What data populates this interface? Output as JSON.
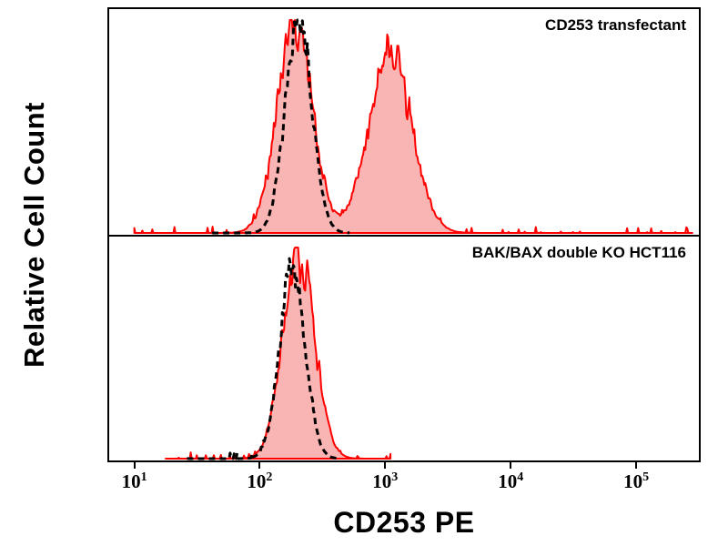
{
  "chart_data": {
    "type": "area",
    "subtype": "flow-cytometry-histogram-overlay",
    "title": "",
    "xlabel": "CD253 PE",
    "ylabel": "Relative Cell Count",
    "x_scale": "log10",
    "x_range_log10": [
      0.8,
      5.5
    ],
    "x_tick_exponents": [
      1,
      2,
      3,
      4,
      5
    ],
    "grid": false,
    "legend_position": "none",
    "colors": {
      "stained_line": "#ff0000",
      "stained_fill": "#f9b4b4",
      "control_line": "#000000",
      "axis": "#000000",
      "background": "#ffffff"
    },
    "panels": [
      {
        "label": "CD253 transfectant",
        "series": [
          {
            "name": "CD253-PE stained (red filled)",
            "style": "solid-filled",
            "color": "#ff0000",
            "fill": "#f9b4b4",
            "peaks": [
              {
                "center_log10": 2.28,
                "sigma_log10": 0.14,
                "height": 0.97
              },
              {
                "center_log10": 3.04,
                "sigma_log10": 0.17,
                "height": 0.84
              }
            ],
            "domain_log10": [
              1.0,
              5.45
            ],
            "noise": 0.16,
            "baseline_spikes": true,
            "seed": 7
          },
          {
            "name": "unstained / isotype control (black dashed)",
            "style": "dashed",
            "color": "#000000",
            "peaks": [
              {
                "center_log10": 2.31,
                "sigma_log10": 0.105,
                "height": 1.0
              }
            ],
            "domain_log10": [
              1.62,
              2.72
            ],
            "noise": 0.12,
            "baseline_spikes": false,
            "seed": 3
          }
        ]
      },
      {
        "label": "BAK/BAX double KO HCT116",
        "series": [
          {
            "name": "CD253-PE stained (red filled)",
            "style": "solid-filled",
            "color": "#ff0000",
            "fill": "#f9b4b4",
            "peaks": [
              {
                "center_log10": 2.31,
                "sigma_log10": 0.125,
                "height": 0.97
              }
            ],
            "domain_log10": [
              1.25,
              3.05
            ],
            "noise": 0.15,
            "baseline_spikes": true,
            "seed": 11
          },
          {
            "name": "unstained / isotype control (black dashed)",
            "style": "dashed",
            "color": "#000000",
            "peaks": [
              {
                "center_log10": 2.26,
                "sigma_log10": 0.1,
                "height": 0.92
              }
            ],
            "domain_log10": [
              1.42,
              2.62
            ],
            "noise": 0.13,
            "baseline_spikes": true,
            "seed": 5
          }
        ]
      }
    ]
  }
}
